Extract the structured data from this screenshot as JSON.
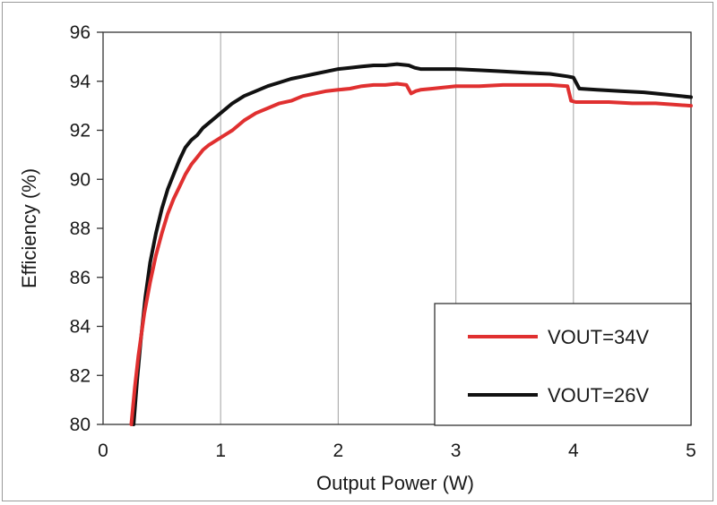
{
  "chart_data": {
    "type": "line",
    "xlabel": "Output Power (W)",
    "ylabel": "Efficiency (%)",
    "xlim": [
      0,
      5
    ],
    "ylim": [
      80,
      96
    ],
    "xticks": [
      "0",
      "1",
      "2",
      "3",
      "4",
      "5"
    ],
    "yticks": [
      "80",
      "82",
      "84",
      "86",
      "88",
      "90",
      "92",
      "94",
      "96"
    ],
    "grid": "vertical",
    "legend_position": "bottom-right",
    "series": [
      {
        "name": "VOUT=34V",
        "color": "#e03030",
        "x": [
          0.24,
          0.27,
          0.3,
          0.35,
          0.4,
          0.45,
          0.5,
          0.55,
          0.6,
          0.65,
          0.7,
          0.75,
          0.8,
          0.85,
          0.9,
          1.0,
          1.1,
          1.2,
          1.3,
          1.4,
          1.5,
          1.6,
          1.7,
          1.8,
          1.9,
          2.0,
          2.1,
          2.2,
          2.3,
          2.4,
          2.5,
          2.58,
          2.62,
          2.66,
          2.7,
          2.8,
          2.9,
          3.0,
          3.2,
          3.4,
          3.6,
          3.8,
          3.95,
          3.98,
          4.02,
          4.1,
          4.3,
          4.5,
          4.7,
          4.85,
          5.0
        ],
        "values": [
          80.0,
          81.5,
          82.8,
          84.5,
          85.8,
          86.9,
          87.8,
          88.6,
          89.2,
          89.7,
          90.2,
          90.6,
          90.9,
          91.2,
          91.4,
          91.7,
          92.0,
          92.4,
          92.7,
          92.9,
          93.1,
          93.2,
          93.4,
          93.5,
          93.6,
          93.65,
          93.7,
          93.8,
          93.85,
          93.85,
          93.9,
          93.85,
          93.5,
          93.6,
          93.65,
          93.7,
          93.75,
          93.8,
          93.8,
          93.85,
          93.85,
          93.85,
          93.8,
          93.2,
          93.15,
          93.15,
          93.15,
          93.1,
          93.1,
          93.05,
          93.0
        ]
      },
      {
        "name": "VOUT=26V",
        "color": "#111111",
        "x": [
          0.26,
          0.29,
          0.32,
          0.36,
          0.4,
          0.45,
          0.5,
          0.55,
          0.6,
          0.65,
          0.7,
          0.75,
          0.8,
          0.85,
          0.9,
          1.0,
          1.1,
          1.2,
          1.3,
          1.4,
          1.5,
          1.6,
          1.7,
          1.8,
          1.9,
          2.0,
          2.1,
          2.2,
          2.3,
          2.4,
          2.5,
          2.6,
          2.65,
          2.7,
          2.8,
          2.9,
          3.0,
          3.2,
          3.4,
          3.6,
          3.8,
          3.95,
          4.0,
          4.05,
          4.2,
          4.4,
          4.6,
          4.8,
          5.0
        ],
        "values": [
          80.0,
          81.8,
          83.4,
          85.2,
          86.6,
          87.8,
          88.8,
          89.6,
          90.2,
          90.8,
          91.3,
          91.6,
          91.8,
          92.1,
          92.3,
          92.7,
          93.1,
          93.4,
          93.6,
          93.8,
          93.95,
          94.1,
          94.2,
          94.3,
          94.4,
          94.5,
          94.55,
          94.6,
          94.65,
          94.65,
          94.7,
          94.65,
          94.55,
          94.5,
          94.5,
          94.5,
          94.5,
          94.45,
          94.4,
          94.35,
          94.3,
          94.2,
          94.15,
          93.7,
          93.65,
          93.6,
          93.55,
          93.45,
          93.35
        ]
      }
    ]
  }
}
